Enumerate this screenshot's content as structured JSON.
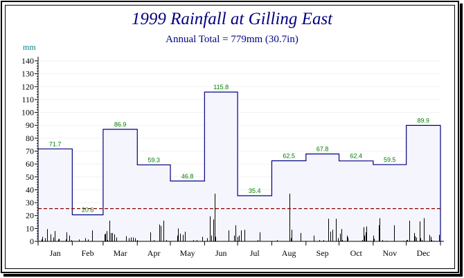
{
  "chart_data": {
    "type": "bar",
    "title": "1999 Rainfall at Gilling East",
    "subtitle": "Annual Total = 779mm (30.7in)",
    "ylabel": "mm",
    "ylim": [
      0,
      140
    ],
    "yticks": [
      "0",
      "10",
      "20",
      "30",
      "40",
      "50",
      "60",
      "70",
      "80",
      "90",
      "100",
      "110",
      "120",
      "130",
      "140"
    ],
    "categories": [
      "Jan",
      "Feb",
      "Mar",
      "Apr",
      "May",
      "Jun",
      "Jul",
      "Aug",
      "Sep",
      "Oct",
      "Nov",
      "Dec"
    ],
    "monthly_totals": [
      71.7,
      20.6,
      86.9,
      59.3,
      46.8,
      115.8,
      35.4,
      62.5,
      67.8,
      62.4,
      59.5,
      89.9
    ],
    "monthly_labels": [
      "71.7",
      "20.6",
      "86.9",
      "59.3",
      "46.8",
      "115.8",
      "35.4",
      "62.5",
      "67.8",
      "62.4",
      "59.5",
      "89.9"
    ],
    "reference_line": 25.4,
    "daily_rainfall": [
      [
        4,
        1.5
      ],
      [
        5,
        3.5
      ],
      [
        7,
        2.5
      ],
      [
        9,
        9.5
      ],
      [
        12,
        5.5
      ],
      [
        15,
        3
      ],
      [
        16,
        8
      ],
      [
        19,
        1.5
      ],
      [
        20,
        2
      ],
      [
        26,
        1.5
      ],
      [
        27,
        7
      ],
      [
        29,
        4.5
      ],
      [
        31,
        1
      ],
      [
        38,
        1.5
      ],
      [
        44,
        2.5
      ],
      [
        46,
        1.5
      ],
      [
        50,
        8.5
      ],
      [
        61,
        5.5
      ],
      [
        62,
        6
      ],
      [
        63,
        8
      ],
      [
        64,
        1
      ],
      [
        66,
        16
      ],
      [
        67,
        6.5
      ],
      [
        68,
        6.5
      ],
      [
        70,
        5.5
      ],
      [
        72,
        3
      ],
      [
        81,
        4
      ],
      [
        83,
        2.5
      ],
      [
        85,
        3
      ],
      [
        87,
        3
      ],
      [
        89,
        2.5
      ],
      [
        91,
        1
      ],
      [
        103,
        7
      ],
      [
        106,
        1
      ],
      [
        111,
        13
      ],
      [
        112,
        12
      ],
      [
        115,
        16
      ],
      [
        117,
        1
      ],
      [
        127,
        4.5
      ],
      [
        128,
        10
      ],
      [
        130,
        6
      ],
      [
        132,
        5
      ],
      [
        134,
        7.5
      ],
      [
        142,
        1
      ],
      [
        145,
        1
      ],
      [
        150,
        3.5
      ],
      [
        154,
        2.5
      ],
      [
        157,
        19.5
      ],
      [
        158,
        4.5
      ],
      [
        160,
        17
      ],
      [
        161,
        37
      ],
      [
        162,
        3.5
      ],
      [
        174,
        8.5
      ],
      [
        179,
        4.5
      ],
      [
        180,
        12.5
      ],
      [
        182,
        3.5
      ],
      [
        183,
        4.5
      ],
      [
        185,
        8.5
      ],
      [
        188,
        9
      ],
      [
        200,
        1
      ],
      [
        202,
        7
      ],
      [
        218,
        1
      ],
      [
        229,
        37
      ],
      [
        230,
        2.5
      ],
      [
        231,
        9
      ],
      [
        239,
        6.5
      ],
      [
        251,
        4.5
      ],
      [
        256,
        1
      ],
      [
        260,
        1
      ],
      [
        264,
        17.5
      ],
      [
        266,
        7.5
      ],
      [
        268,
        9
      ],
      [
        271,
        17.5
      ],
      [
        273,
        2.5
      ],
      [
        275,
        6
      ],
      [
        276,
        9.5
      ],
      [
        277,
        1
      ],
      [
        281,
        4.5
      ],
      [
        282,
        3
      ],
      [
        295,
        1
      ],
      [
        296,
        11
      ],
      [
        297,
        4.5
      ],
      [
        298,
        7
      ],
      [
        299,
        11.5
      ],
      [
        305,
        4.5
      ],
      [
        306,
        2
      ],
      [
        310,
        12.5
      ],
      [
        311,
        18
      ],
      [
        313,
        1
      ],
      [
        317,
        0.5
      ],
      [
        324,
        12.5
      ],
      [
        332,
        0.5
      ],
      [
        335,
        1
      ],
      [
        336,
        1
      ],
      [
        338,
        16
      ],
      [
        342,
        6.5
      ],
      [
        343,
        4
      ],
      [
        344,
        3
      ],
      [
        347,
        15.5
      ],
      [
        348,
        2.5
      ],
      [
        349,
        1
      ],
      [
        351,
        18
      ],
      [
        356,
        5
      ],
      [
        357,
        3.5
      ],
      [
        358,
        1
      ],
      [
        360,
        0.5
      ],
      [
        365,
        5
      ]
    ],
    "grid": true,
    "colors": {
      "title": "#000080",
      "step_line": "#000080",
      "fill": "#f5f5fd",
      "labels": "#008000",
      "reference": "#800000",
      "daily": "#000000",
      "unit": "#008080"
    }
  }
}
